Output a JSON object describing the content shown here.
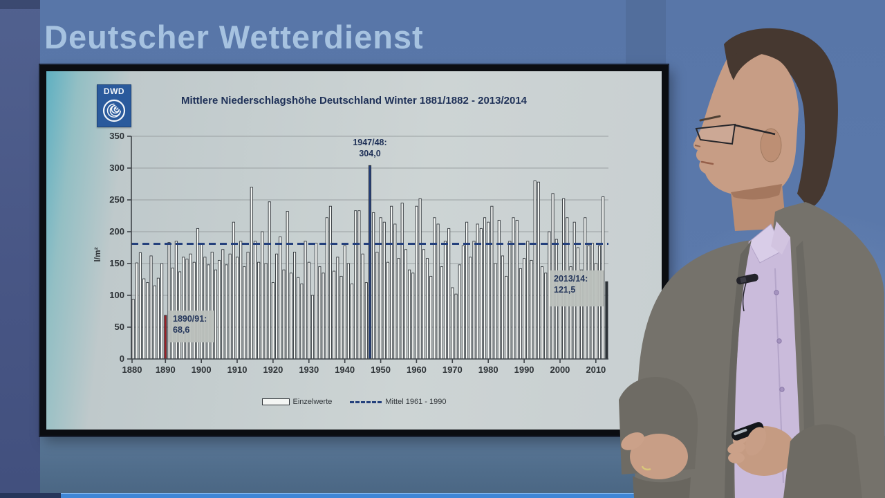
{
  "banner": {
    "title": "Deutscher Wetterdienst"
  },
  "logo": {
    "text": "DWD"
  },
  "chart_data": {
    "type": "bar",
    "title": "Mittlere Niederschlagshöhe Deutschland Winter 1881/1882 - 2013/2014",
    "ylabel": "l/m²",
    "ylim": [
      0,
      350
    ],
    "yticks": [
      0,
      50,
      100,
      150,
      200,
      250,
      300,
      350
    ],
    "xticks": [
      1880,
      1890,
      1900,
      1910,
      1920,
      1930,
      1940,
      1950,
      1960,
      1970,
      1980,
      1990,
      2000,
      2010
    ],
    "x_start_year": 1881,
    "grid": true,
    "legend_position": "bottom-center",
    "bar_fill": "#f4f6f4",
    "bar_stroke": "#30353a",
    "values": [
      94,
      151,
      167,
      126,
      120,
      162,
      115,
      127,
      150,
      68.6,
      183,
      143,
      185,
      137,
      160,
      157,
      165,
      152,
      205,
      182,
      160,
      148,
      168,
      140,
      155,
      172,
      148,
      165,
      215,
      160,
      185,
      145,
      168,
      270,
      185,
      152,
      200,
      150,
      247,
      120,
      165,
      192,
      140,
      232,
      135,
      168,
      128,
      118,
      185,
      152,
      100,
      182,
      145,
      135,
      222,
      240,
      138,
      160,
      130,
      178,
      150,
      118,
      233,
      233,
      165,
      120,
      304,
      230,
      168,
      222,
      215,
      152,
      240,
      212,
      158,
      245,
      172,
      140,
      135,
      240,
      252,
      172,
      158,
      130,
      222,
      212,
      145,
      185,
      205,
      112,
      102,
      148,
      178,
      215,
      160,
      185,
      212,
      205,
      222,
      215,
      240,
      150,
      218,
      162,
      130,
      185,
      222,
      218,
      142,
      158,
      185,
      155,
      280,
      278,
      145,
      135,
      200,
      260,
      188,
      132,
      252,
      222,
      145,
      215,
      175,
      140,
      222,
      178,
      182,
      150,
      178,
      255,
      121.5
    ],
    "highlights": [
      {
        "index": 9,
        "winter": "1890/91",
        "value": 68.6,
        "label_line1": "1890/91:",
        "label_line2": "68,6",
        "color": "#9e2127",
        "style": "box"
      },
      {
        "index": 66,
        "winter": "1947/48",
        "value": 304.0,
        "label_line1": "1947/48:",
        "label_line2": "304,0",
        "color": "#24407c",
        "style": "top-text"
      },
      {
        "index": 132,
        "winter": "2013/14",
        "value": 121.5,
        "label_line1": "2013/14:",
        "label_line2": "121,5",
        "color": "#2c3237",
        "style": "box"
      }
    ],
    "mean_line": {
      "value": 181,
      "color": "#24407c"
    },
    "legend": [
      {
        "type": "bar-swatch",
        "label": "Einzelwerte"
      },
      {
        "type": "dashed-line",
        "label": "Mittel 1961 - 1990"
      }
    ]
  }
}
